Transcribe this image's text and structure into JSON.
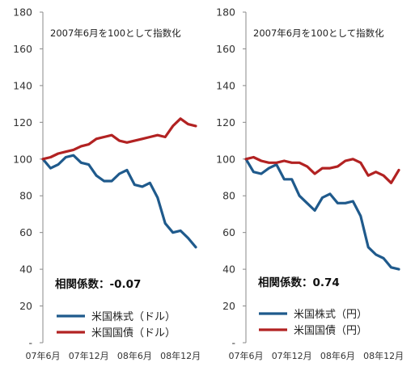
{
  "chart_data": [
    {
      "type": "line",
      "title": "",
      "note": "2007年6月を100として指数化",
      "correlation_label": "相関係数：-0.07",
      "ylim": [
        0,
        180
      ],
      "yticks": [
        "-",
        "20",
        "40",
        "60",
        "80",
        "100",
        "120",
        "140",
        "160",
        "180"
      ],
      "xticks": [
        "07年6月",
        "07年12月",
        "08年6月",
        "08年12月"
      ],
      "xtick_index": [
        0,
        6,
        12,
        18
      ],
      "x_count": 21,
      "series": [
        {
          "name": "米国株式（ドル）",
          "color": "#1F5A8C",
          "values": [
            100,
            95,
            97,
            101,
            102,
            98,
            97,
            91,
            88,
            88,
            92,
            94,
            86,
            85,
            87,
            79,
            65,
            60,
            61,
            57,
            52
          ]
        },
        {
          "name": "米国国債（ドル）",
          "color": "#B22222",
          "values": [
            100,
            101,
            103,
            104,
            105,
            107,
            108,
            111,
            112,
            113,
            110,
            109,
            110,
            111,
            112,
            113,
            112,
            118,
            122,
            119,
            118
          ]
        }
      ]
    },
    {
      "type": "line",
      "title": "",
      "note": "2007年6月を100として指数化",
      "correlation_label": "相関係数：0.74",
      "ylim": [
        0,
        180
      ],
      "yticks": [
        "-",
        "20",
        "40",
        "60",
        "80",
        "100",
        "120",
        "140",
        "160",
        "180"
      ],
      "xticks": [
        "07年6月",
        "07年12月",
        "08年6月",
        "08年12月"
      ],
      "xtick_index": [
        0,
        6,
        12,
        18
      ],
      "x_count": 21,
      "series": [
        {
          "name": "米国株式（円）",
          "color": "#1F5A8C",
          "values": [
            100,
            93,
            92,
            95,
            97,
            89,
            89,
            80,
            76,
            72,
            79,
            81,
            76,
            76,
            77,
            69,
            52,
            48,
            46,
            41,
            40
          ]
        },
        {
          "name": "米国国債（円）",
          "color": "#B22222",
          "values": [
            100,
            101,
            99,
            98,
            98,
            99,
            98,
            98,
            96,
            92,
            95,
            95,
            96,
            99,
            100,
            98,
            91,
            93,
            91,
            87,
            94
          ]
        }
      ]
    }
  ]
}
